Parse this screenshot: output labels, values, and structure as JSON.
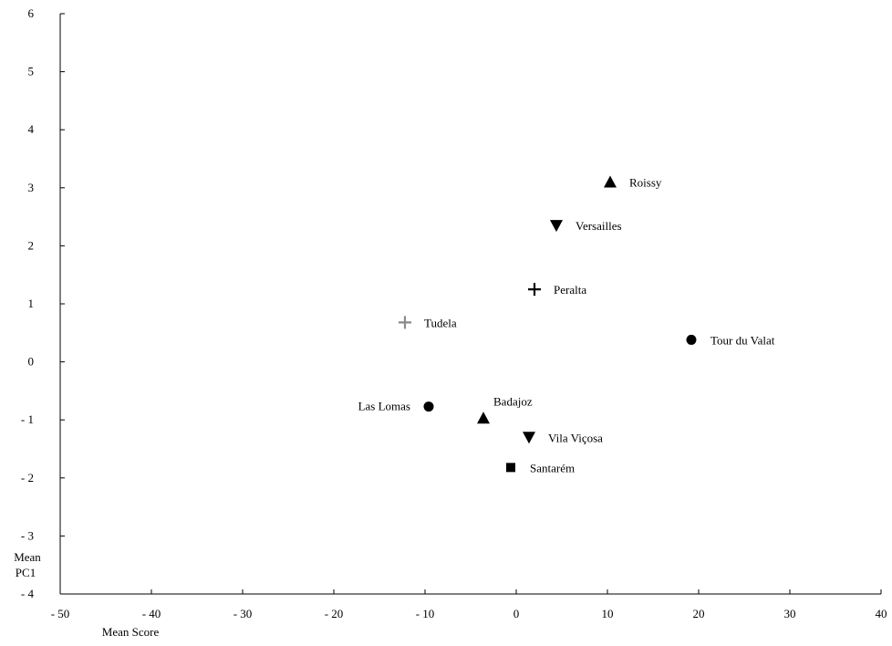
{
  "chart_data": {
    "type": "scatter",
    "title": "",
    "xlabel": "Mean Score",
    "ylabel_lines": [
      "Mean",
      "PC1"
    ],
    "xlim": [
      -50,
      40
    ],
    "ylim": [
      -4,
      6
    ],
    "xticks": [
      -50,
      -40,
      -30,
      -20,
      -10,
      0,
      10,
      20,
      30,
      40
    ],
    "yticks": [
      -4,
      -3,
      -2,
      -1,
      0,
      1,
      2,
      3,
      4,
      5,
      6
    ],
    "xtick_labels": [
      "- 50",
      "- 40",
      "- 30",
      "- 20",
      "- 10",
      "0",
      "10",
      "20",
      "30",
      "40"
    ],
    "ytick_labels": [
      "- 4",
      "- 3",
      "- 2",
      "- 1",
      "0",
      "1",
      "2",
      "3",
      "4",
      "5",
      "6"
    ],
    "grid": false,
    "points": [
      {
        "label": "Roissy",
        "x": 10.3,
        "y": 3.1,
        "marker": "triangle-up",
        "color": "#000000",
        "label_side": "right"
      },
      {
        "label": "Versailles",
        "x": 4.4,
        "y": 2.35,
        "marker": "triangle-down",
        "color": "#000000",
        "label_side": "right"
      },
      {
        "label": "Peralta",
        "x": 2.0,
        "y": 1.25,
        "marker": "plus",
        "color": "#000000",
        "label_side": "right"
      },
      {
        "label": "Tudela",
        "x": -12.2,
        "y": 0.68,
        "marker": "plus",
        "color": "#8a8a8a",
        "label_side": "right"
      },
      {
        "label": "Tour du Valat",
        "x": 19.2,
        "y": 0.38,
        "marker": "circle",
        "color": "#000000",
        "label_side": "right"
      },
      {
        "label": "Las Lomas",
        "x": -9.6,
        "y": -0.77,
        "marker": "circle",
        "color": "#000000",
        "label_side": "left"
      },
      {
        "label": "Badajoz",
        "x": -3.6,
        "y": -0.97,
        "marker": "triangle-up",
        "color": "#000000",
        "label_side": "above-right"
      },
      {
        "label": "Vila Viçosa",
        "x": 1.4,
        "y": -1.3,
        "marker": "triangle-down",
        "color": "#000000",
        "label_side": "right"
      },
      {
        "label": "Santarém",
        "x": -0.6,
        "y": -1.82,
        "marker": "square",
        "color": "#000000",
        "label_side": "right"
      }
    ]
  }
}
